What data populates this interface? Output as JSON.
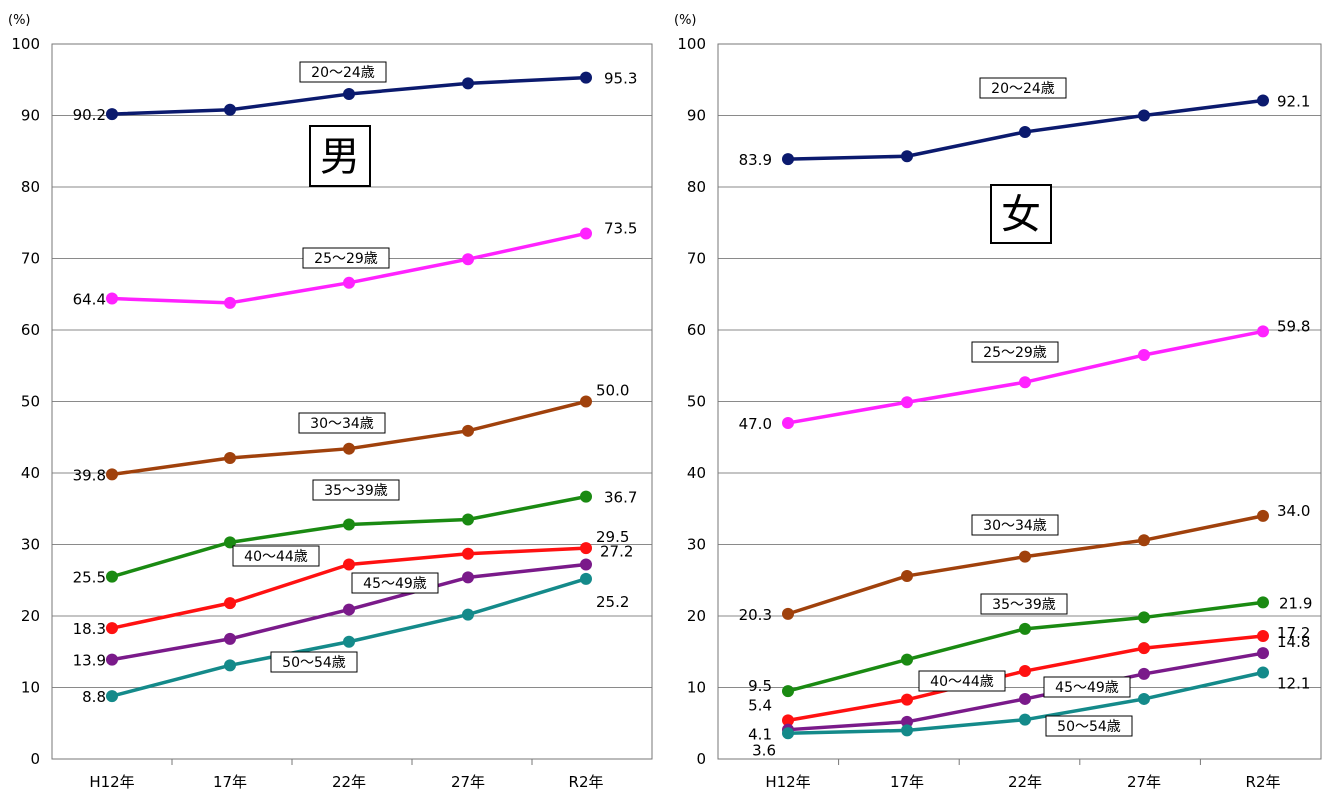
{
  "chart_data": [
    {
      "type": "line",
      "unit_label": "(%)",
      "categories": [
        "H12年",
        "17年",
        "22年",
        "27年",
        "R2年"
      ],
      "ylim": [
        0,
        100
      ],
      "yticks": [
        "0",
        "10",
        "20",
        "30",
        "40",
        "50",
        "60",
        "70",
        "80",
        "90",
        "100"
      ],
      "grid": true,
      "gender_label": "男",
      "series": [
        {
          "name": "20〜24歳",
          "color": "#0b1a6e",
          "values": [
            90.2,
            90.8,
            93.0,
            94.5,
            95.3
          ],
          "first_label": "90.2",
          "last_label": "95.3"
        },
        {
          "name": "25〜29歳",
          "color": "#ff22ff",
          "values": [
            64.4,
            63.8,
            66.6,
            69.9,
            73.5
          ],
          "first_label": "64.4",
          "last_label": "73.5"
        },
        {
          "name": "30〜34歳",
          "color": "#a0410c",
          "values": [
            39.8,
            42.1,
            43.4,
            45.9,
            50.0
          ],
          "first_label": "39.8",
          "last_label": "50.0"
        },
        {
          "name": "35〜39歳",
          "color": "#1a8a12",
          "values": [
            25.5,
            30.3,
            32.8,
            33.5,
            36.7
          ],
          "first_label": "25.5",
          "last_label": "36.7"
        },
        {
          "name": "40〜44歳",
          "color": "#ff1111",
          "values": [
            18.3,
            21.8,
            27.2,
            28.7,
            29.5
          ],
          "first_label": "18.3",
          "last_label": "29.5"
        },
        {
          "name": "45〜49歳",
          "color": "#7a1a8a",
          "values": [
            13.9,
            16.8,
            20.9,
            25.4,
            27.2
          ],
          "first_label": "13.9",
          "last_label": "27.2"
        },
        {
          "name": "50〜54歳",
          "color": "#148a8a",
          "values": [
            8.8,
            13.1,
            16.4,
            20.2,
            25.2
          ],
          "first_label": "8.8",
          "last_label": "25.2"
        }
      ]
    },
    {
      "type": "line",
      "unit_label": "(%)",
      "categories": [
        "H12年",
        "17年",
        "22年",
        "27年",
        "R2年"
      ],
      "ylim": [
        0,
        100
      ],
      "yticks": [
        "0",
        "10",
        "20",
        "30",
        "40",
        "50",
        "60",
        "70",
        "80",
        "90",
        "100"
      ],
      "grid": true,
      "gender_label": "女",
      "series": [
        {
          "name": "20〜24歳",
          "color": "#0b1a6e",
          "values": [
            83.9,
            84.3,
            87.7,
            90.0,
            92.1
          ],
          "first_label": "83.9",
          "last_label": "92.1"
        },
        {
          "name": "25〜29歳",
          "color": "#ff22ff",
          "values": [
            47.0,
            49.9,
            52.7,
            56.5,
            59.8
          ],
          "first_label": "47.0",
          "last_label": "59.8"
        },
        {
          "name": "30〜34歳",
          "color": "#a0410c",
          "values": [
            20.3,
            25.6,
            28.3,
            30.6,
            34.0
          ],
          "first_label": "20.3",
          "last_label": "34.0"
        },
        {
          "name": "35〜39歳",
          "color": "#1a8a12",
          "values": [
            9.5,
            13.9,
            18.2,
            19.8,
            21.9
          ],
          "first_label": "9.5",
          "last_label": "21.9"
        },
        {
          "name": "40〜44歳",
          "color": "#ff1111",
          "values": [
            5.4,
            8.3,
            12.3,
            15.5,
            17.2
          ],
          "first_label": "5.4",
          "last_label": "17.2"
        },
        {
          "name": "45〜49歳",
          "color": "#7a1a8a",
          "values": [
            4.1,
            5.2,
            8.4,
            11.9,
            14.8
          ],
          "first_label": "4.1",
          "last_label": "14.8"
        },
        {
          "name": "50〜54歳",
          "color": "#148a8a",
          "values": [
            3.6,
            4.0,
            5.5,
            8.4,
            12.1
          ],
          "first_label": "3.6",
          "last_label": "12.1"
        }
      ]
    }
  ]
}
